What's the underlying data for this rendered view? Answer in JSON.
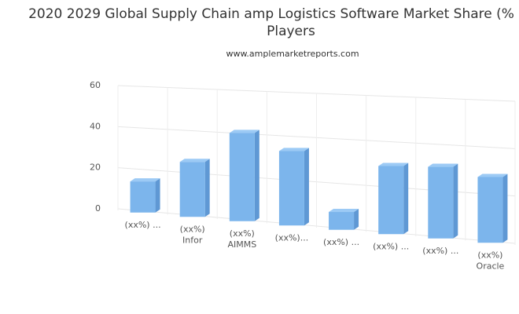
{
  "chart_data": {
    "type": "bar3d",
    "title_lines": [
      "2020 2029 Global Supply Chain amp Logistics Software Market Share (%",
      "Players"
    ],
    "subtitle": "www.amplemarketreports.com",
    "categories": [
      "(xx%) ...",
      "(xx%)\nInfor",
      "(xx%)\nAIMMS",
      "(xx%)...",
      "(xx%) ...",
      "(xx%) ...",
      "(xx%) ...",
      "(xx%)\nOracle"
    ],
    "values": [
      15,
      26,
      41,
      34,
      8,
      30,
      31,
      28
    ],
    "color": "#7cb5ec",
    "ylim": [
      0,
      60
    ],
    "yticks": [
      0,
      20,
      40,
      60
    ],
    "grid": true
  }
}
